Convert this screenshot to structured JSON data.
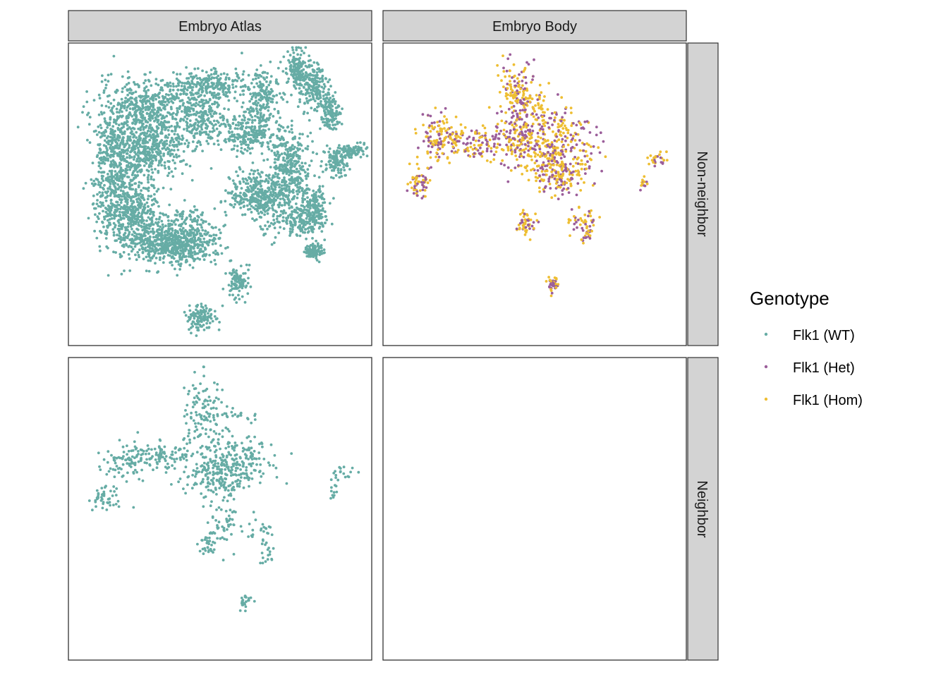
{
  "chart_data": {
    "type": "scatter",
    "facet_layout": "grid",
    "grid": false,
    "column_strips": [
      "Embryo Atlas",
      "Embryo Body"
    ],
    "row_strips": [
      "Non-neighbor",
      "Neighbor"
    ],
    "legend": {
      "title": "Genotype",
      "position": "right",
      "entries": [
        {
          "label": "Flk1 (WT)",
          "color": "#66aca5"
        },
        {
          "label": "Flk1 (Het)",
          "color": "#9b5e9a"
        },
        {
          "label": "Flk1 (Hom)",
          "color": "#eebe32"
        }
      ]
    },
    "panels": [
      {
        "col": "Embryo Atlas",
        "row": "Non-neighbor",
        "genotypes": [
          "Flk1 (WT)"
        ],
        "clusters": [
          {
            "x": 0.15,
            "y": 0.4,
            "sx": 0.035,
            "sy": 0.11,
            "n": 420
          },
          {
            "x": 0.26,
            "y": 0.34,
            "sx": 0.06,
            "sy": 0.06,
            "n": 500
          },
          {
            "x": 0.2,
            "y": 0.55,
            "sx": 0.05,
            "sy": 0.06,
            "n": 380
          },
          {
            "x": 0.29,
            "y": 0.64,
            "sx": 0.07,
            "sy": 0.045,
            "n": 340
          },
          {
            "x": 0.26,
            "y": 0.21,
            "sx": 0.075,
            "sy": 0.04,
            "n": 360
          },
          {
            "x": 0.44,
            "y": 0.24,
            "sx": 0.04,
            "sy": 0.05,
            "n": 240
          },
          {
            "x": 0.47,
            "y": 0.14,
            "sx": 0.07,
            "sy": 0.025,
            "n": 240
          },
          {
            "x": 0.64,
            "y": 0.2,
            "sx": 0.03,
            "sy": 0.06,
            "n": 220
          },
          {
            "x": 0.59,
            "y": 0.3,
            "sx": 0.045,
            "sy": 0.025,
            "n": 200
          },
          {
            "x": 0.72,
            "y": 0.37,
            "sx": 0.035,
            "sy": 0.045,
            "n": 200
          },
          {
            "x": 0.6,
            "y": 0.5,
            "sx": 0.04,
            "sy": 0.035,
            "n": 200
          },
          {
            "x": 0.66,
            "y": 0.52,
            "sx": 0.04,
            "sy": 0.05,
            "n": 200
          },
          {
            "x": 0.73,
            "y": 0.46,
            "sx": 0.03,
            "sy": 0.035,
            "n": 150
          },
          {
            "x": 0.41,
            "y": 0.64,
            "sx": 0.05,
            "sy": 0.04,
            "n": 220
          },
          {
            "x": 0.36,
            "y": 0.68,
            "sx": 0.05,
            "sy": 0.025,
            "n": 200
          },
          {
            "x": 0.81,
            "y": 0.55,
            "sx": 0.025,
            "sy": 0.04,
            "n": 180
          },
          {
            "x": 0.76,
            "y": 0.59,
            "sx": 0.03,
            "sy": 0.025,
            "n": 120
          },
          {
            "x": 0.75,
            "y": 0.08,
            "sx": 0.015,
            "sy": 0.03,
            "n": 120
          },
          {
            "x": 0.81,
            "y": 0.14,
            "sx": 0.025,
            "sy": 0.04,
            "n": 200
          },
          {
            "x": 0.86,
            "y": 0.23,
            "sx": 0.018,
            "sy": 0.03,
            "n": 120
          },
          {
            "x": 0.93,
            "y": 0.36,
            "sx": 0.025,
            "sy": 0.012,
            "n": 100
          },
          {
            "x": 0.88,
            "y": 0.4,
            "sx": 0.02,
            "sy": 0.025,
            "n": 90
          },
          {
            "x": 0.81,
            "y": 0.69,
            "sx": 0.015,
            "sy": 0.012,
            "n": 90
          },
          {
            "x": 0.56,
            "y": 0.79,
            "sx": 0.018,
            "sy": 0.025,
            "n": 100
          },
          {
            "x": 0.44,
            "y": 0.91,
            "sx": 0.025,
            "sy": 0.02,
            "n": 120
          }
        ]
      },
      {
        "col": "Embryo Body",
        "row": "Non-neighbor",
        "genotypes": [
          "Flk1 (Het)",
          "Flk1 (Hom)"
        ],
        "clusters": [
          {
            "x": 0.44,
            "y": 0.16,
            "sx": 0.03,
            "sy": 0.05,
            "n": 120
          },
          {
            "x": 0.48,
            "y": 0.21,
            "sx": 0.04,
            "sy": 0.04,
            "n": 70
          },
          {
            "x": 0.44,
            "y": 0.32,
            "sx": 0.04,
            "sy": 0.04,
            "n": 120
          },
          {
            "x": 0.56,
            "y": 0.34,
            "sx": 0.065,
            "sy": 0.06,
            "n": 330
          },
          {
            "x": 0.59,
            "y": 0.44,
            "sx": 0.04,
            "sy": 0.03,
            "n": 110
          },
          {
            "x": 0.31,
            "y": 0.33,
            "sx": 0.04,
            "sy": 0.025,
            "n": 90
          },
          {
            "x": 0.19,
            "y": 0.31,
            "sx": 0.04,
            "sy": 0.04,
            "n": 140
          },
          {
            "x": 0.12,
            "y": 0.46,
            "sx": 0.02,
            "sy": 0.025,
            "n": 60
          },
          {
            "x": 0.47,
            "y": 0.6,
            "sx": 0.015,
            "sy": 0.02,
            "n": 55
          },
          {
            "x": 0.65,
            "y": 0.58,
            "sx": 0.03,
            "sy": 0.02,
            "n": 35
          },
          {
            "x": 0.67,
            "y": 0.63,
            "sx": 0.012,
            "sy": 0.02,
            "n": 25
          },
          {
            "x": 0.56,
            "y": 0.8,
            "sx": 0.01,
            "sy": 0.015,
            "n": 40
          },
          {
            "x": 0.9,
            "y": 0.38,
            "sx": 0.02,
            "sy": 0.012,
            "n": 25
          },
          {
            "x": 0.86,
            "y": 0.46,
            "sx": 0.008,
            "sy": 0.012,
            "n": 12
          }
        ]
      },
      {
        "col": "Embryo Atlas",
        "row": "Neighbor",
        "genotypes": [
          "Flk1 (WT)"
        ],
        "clusters": [
          {
            "x": 0.45,
            "y": 0.19,
            "sx": 0.04,
            "sy": 0.06,
            "n": 120
          },
          {
            "x": 0.54,
            "y": 0.19,
            "sx": 0.04,
            "sy": 0.01,
            "n": 20
          },
          {
            "x": 0.49,
            "y": 0.38,
            "sx": 0.06,
            "sy": 0.045,
            "n": 220
          },
          {
            "x": 0.57,
            "y": 0.34,
            "sx": 0.05,
            "sy": 0.04,
            "n": 120
          },
          {
            "x": 0.3,
            "y": 0.32,
            "sx": 0.05,
            "sy": 0.025,
            "n": 100
          },
          {
            "x": 0.19,
            "y": 0.34,
            "sx": 0.035,
            "sy": 0.03,
            "n": 70
          },
          {
            "x": 0.12,
            "y": 0.47,
            "sx": 0.025,
            "sy": 0.02,
            "n": 45
          },
          {
            "x": 0.52,
            "y": 0.55,
            "sx": 0.03,
            "sy": 0.05,
            "n": 50
          },
          {
            "x": 0.46,
            "y": 0.61,
            "sx": 0.015,
            "sy": 0.02,
            "n": 30
          },
          {
            "x": 0.64,
            "y": 0.58,
            "sx": 0.03,
            "sy": 0.02,
            "n": 22
          },
          {
            "x": 0.66,
            "y": 0.65,
            "sx": 0.012,
            "sy": 0.02,
            "n": 16
          },
          {
            "x": 0.58,
            "y": 0.81,
            "sx": 0.012,
            "sy": 0.012,
            "n": 24
          },
          {
            "x": 0.91,
            "y": 0.38,
            "sx": 0.02,
            "sy": 0.015,
            "n": 18
          },
          {
            "x": 0.88,
            "y": 0.44,
            "sx": 0.008,
            "sy": 0.012,
            "n": 10
          }
        ]
      },
      {
        "col": "Embryo Body",
        "row": "Neighbor",
        "genotypes": [],
        "clusters": []
      }
    ]
  }
}
